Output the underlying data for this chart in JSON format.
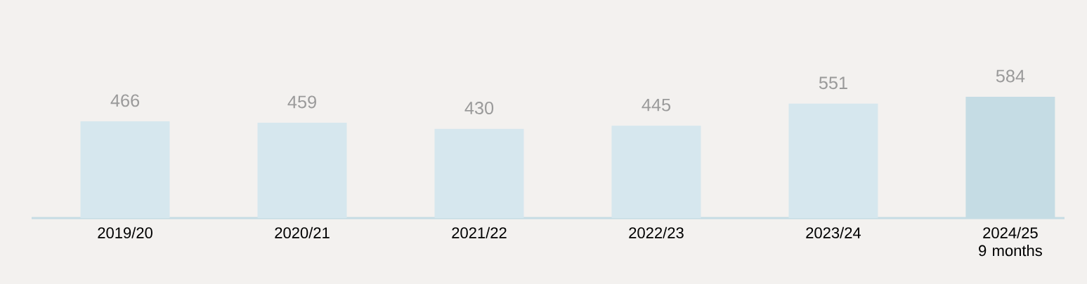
{
  "chart_data": {
    "type": "bar",
    "categories": [
      "2019/20",
      "2020/21",
      "2021/22",
      "2022/23",
      "2023/24",
      "2024/25 9 months"
    ],
    "values": [
      466,
      459,
      430,
      445,
      551,
      584
    ],
    "colors": [
      "#d6e7ee",
      "#d6e7ee",
      "#d6e7ee",
      "#d6e7ee",
      "#d6e7ee",
      "#c5dce4"
    ],
    "data_labels": true,
    "tick_labels": "x"
  }
}
